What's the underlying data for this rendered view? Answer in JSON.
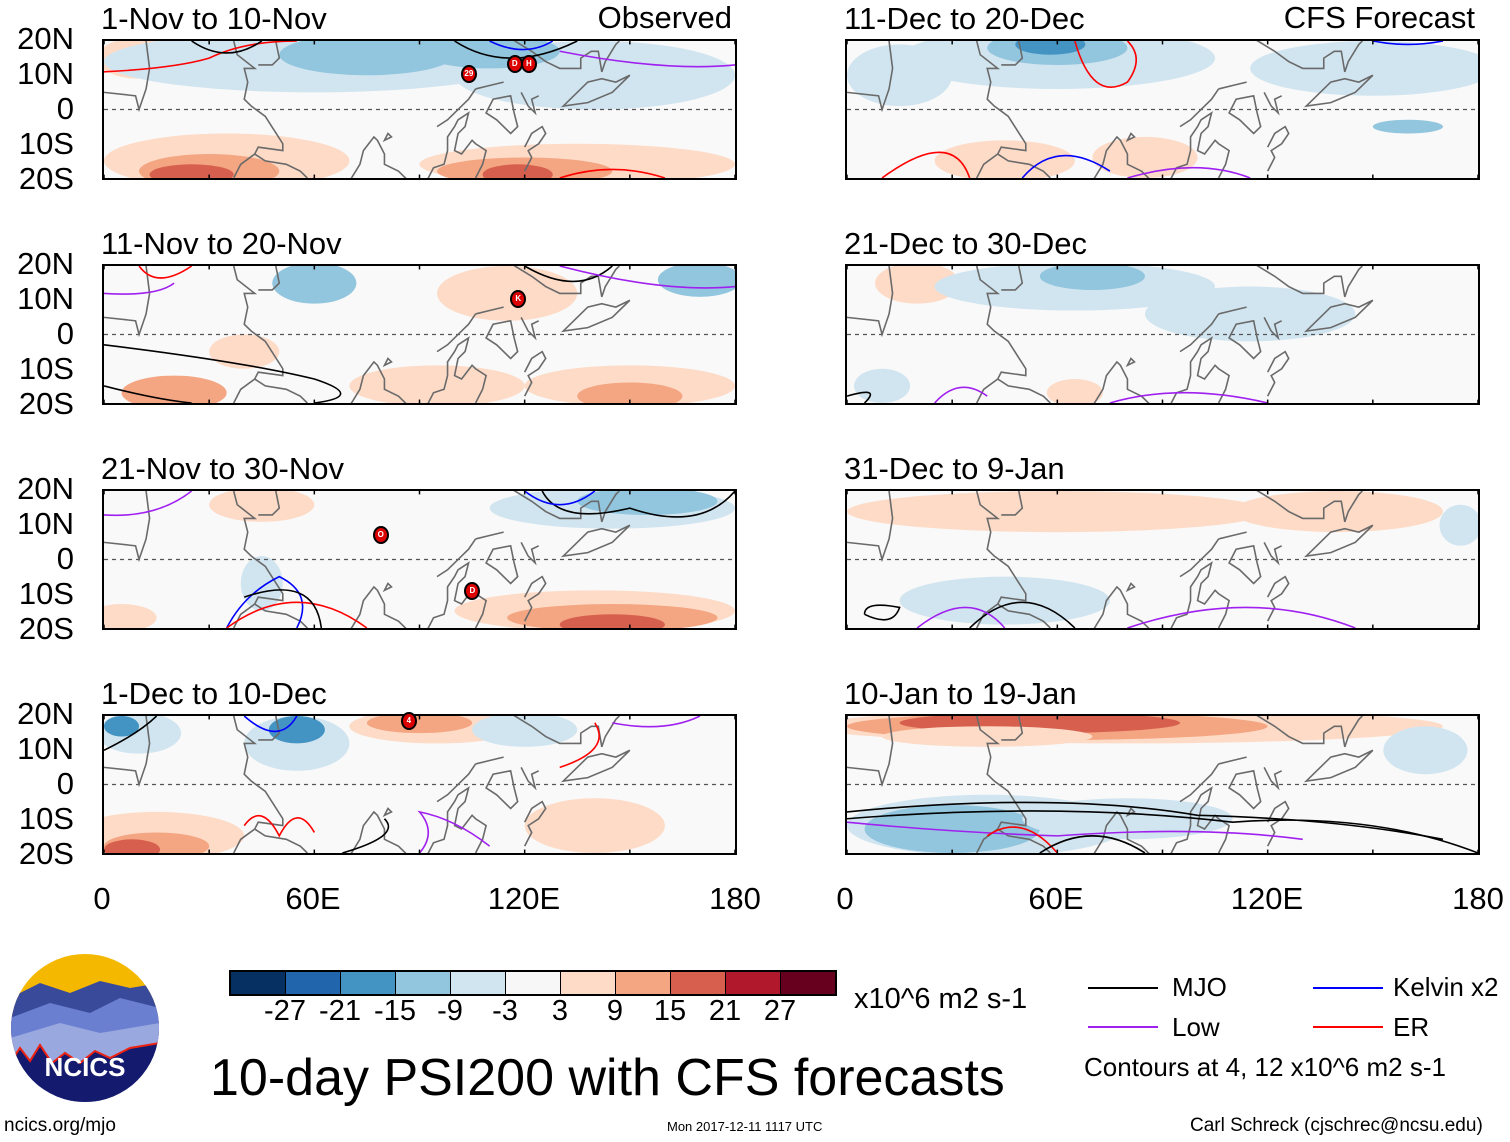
{
  "left_column": {
    "header_right": "Observed",
    "panels": [
      {
        "title": "1-Nov to 10-Nov",
        "cyclones": [
          "29",
          "D",
          "H"
        ]
      },
      {
        "title": "11-Nov to 20-Nov",
        "cyclones": [
          "K"
        ]
      },
      {
        "title": "21-Nov to 30-Nov",
        "cyclones": [
          "O",
          "D"
        ]
      },
      {
        "title": "1-Dec to 10-Dec",
        "cyclones": [
          "4"
        ]
      }
    ]
  },
  "right_column": {
    "header_right": "CFS Forecast",
    "panels": [
      {
        "title": "11-Dec to 20-Dec"
      },
      {
        "title": "21-Dec to 30-Dec"
      },
      {
        "title": "31-Dec to 9-Jan"
      },
      {
        "title": "10-Jan to 19-Jan"
      }
    ]
  },
  "lat_labels": [
    "20N",
    "10N",
    "0",
    "10S",
    "20S"
  ],
  "lon_labels": [
    "0",
    "60E",
    "120E",
    "180"
  ],
  "colorbar": {
    "colors": [
      "#053061",
      "#2166ac",
      "#4393c3",
      "#92c5de",
      "#d1e5f0",
      "#f7f7f7",
      "#fddbc7",
      "#f4a582",
      "#d6604d",
      "#b2182b",
      "#67001f"
    ],
    "labels": [
      "-27",
      "-21",
      "-15",
      "-9",
      "-3",
      "3",
      "9",
      "15",
      "21",
      "27"
    ],
    "units": "x10^6 m2 s-1"
  },
  "title": "10-day PSI200 with CFS forecasts",
  "legend": {
    "items": [
      {
        "label": "MJO",
        "color": "#000000"
      },
      {
        "label": "Kelvin x2",
        "color": "#0000ff"
      },
      {
        "label": "Low",
        "color": "#a020f0"
      },
      {
        "label": "ER",
        "color": "#ff0000"
      }
    ],
    "contours_note": "Contours at 4, 12 x10^6 m2 s-1"
  },
  "logo_text": "NCICS",
  "footer": {
    "url": "ncics.org/mjo",
    "timestamp": "Mon 2017-12-11 1117 UTC",
    "credit": "Carl Schreck (cjschrec@ncsu.edu)"
  }
}
